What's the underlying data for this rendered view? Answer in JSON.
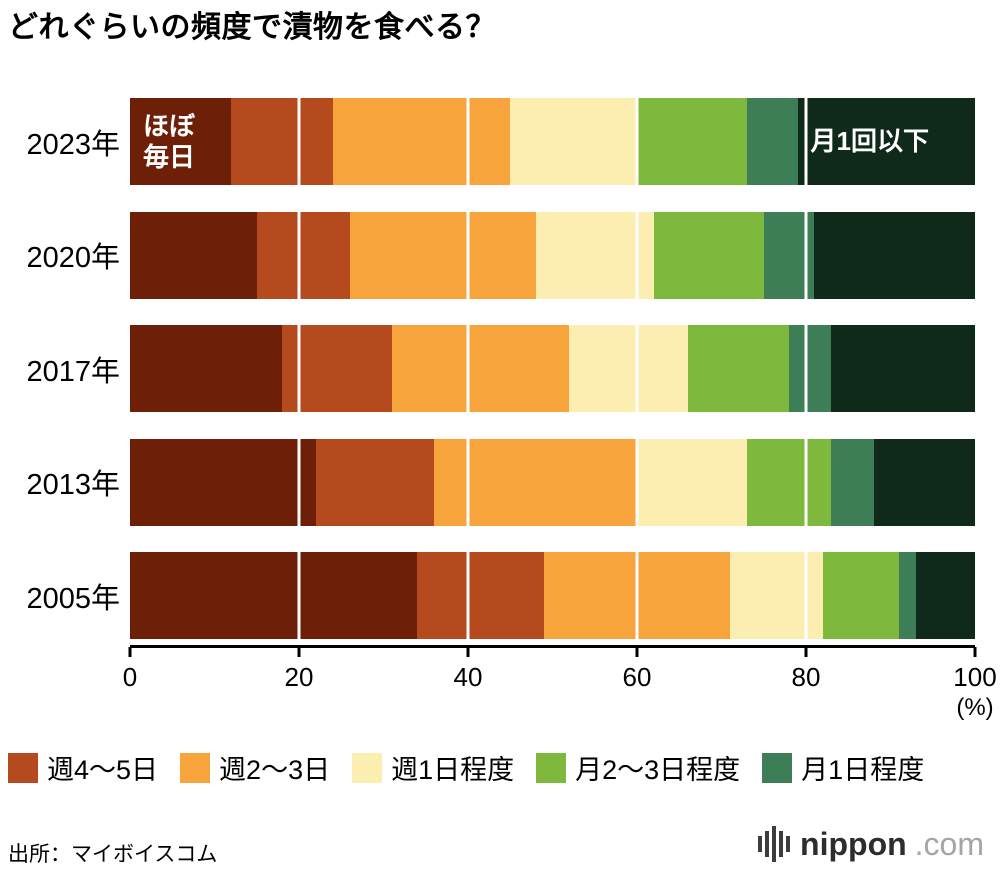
{
  "title": "どれぐらいの頻度で漬物を食べる？",
  "chart_data": {
    "type": "bar",
    "subtype": "horizontal-stacked",
    "unit": "(%)",
    "xlim": [
      0,
      100
    ],
    "x_ticks": [
      0,
      20,
      40,
      60,
      80,
      100
    ],
    "grid": true,
    "legend_position": "bottom",
    "categories": [
      "2023年",
      "2020年",
      "2017年",
      "2013年",
      "2005年"
    ],
    "series": [
      {
        "name": "ほぼ毎日",
        "color": "#6d1f08",
        "in_legend": false,
        "values": [
          12,
          15,
          18,
          22,
          34
        ]
      },
      {
        "name": "週4〜5日",
        "color": "#b54a1f",
        "in_legend": true,
        "values": [
          12,
          11,
          13,
          14,
          15
        ]
      },
      {
        "name": "週2〜3日",
        "color": "#f7a43d",
        "in_legend": true,
        "values": [
          21,
          22,
          21,
          24,
          22
        ]
      },
      {
        "name": "週1日程度",
        "color": "#fbeeb0",
        "in_legend": true,
        "values": [
          15,
          14,
          14,
          13,
          11
        ]
      },
      {
        "name": "月2〜3日程度",
        "color": "#7eb83c",
        "in_legend": true,
        "values": [
          13,
          13,
          12,
          10,
          9
        ]
      },
      {
        "name": "月1日程度",
        "color": "#3e7e57",
        "in_legend": true,
        "values": [
          6,
          6,
          5,
          5,
          2
        ]
      },
      {
        "name": "月1回以下",
        "color": "#0f2a1a",
        "in_legend": false,
        "values": [
          21,
          19,
          17,
          12,
          7
        ]
      }
    ],
    "annotations": [
      {
        "category": "2023年",
        "segment": "ほぼ毎日",
        "text": "ほぼ\n毎日"
      },
      {
        "category": "2023年",
        "segment": "月1回以下",
        "text": "月1回以下"
      }
    ]
  },
  "source": "出所：マイボイスコム",
  "logo": {
    "brand": "nippon",
    "tld": ".com"
  }
}
